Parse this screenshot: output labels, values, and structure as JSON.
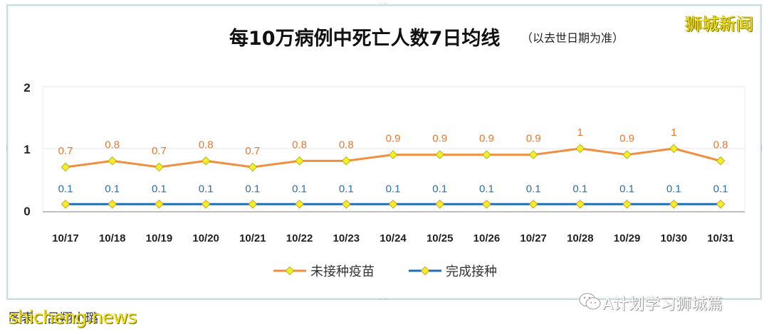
{
  "header": {
    "title": "每10万病例中死亡人数7日均线",
    "subtitle": "（以去世日期为准）",
    "brand": "狮城新闻"
  },
  "legend": {
    "items": [
      {
        "label": "未接种疫苗",
        "color": "#f28e3f"
      },
      {
        "label": "完成接种",
        "color": "#1f6fb5"
      }
    ]
  },
  "footer": {
    "caption": "图表：吕翔小璐",
    "watermark_en": "shicheng.news",
    "watermark_cn": "A计划学习狮城篇"
  },
  "colors": {
    "unvaccinated": "#f28e3f",
    "vaccinated": "#1f6fb5",
    "marker_fill": "#f4ee2a",
    "unvaccinated_label": "#e8782e",
    "vaccinated_label": "#2a6faf",
    "gridline": "#e4e4e4",
    "axis": "#bfbfbf"
  },
  "chart_data": {
    "type": "line",
    "title": "每10万病例中死亡人数7日均线（以去世日期为准）",
    "xlabel": "",
    "ylabel": "",
    "ylim": [
      0,
      2
    ],
    "yticks": [
      0,
      1,
      2
    ],
    "grid": true,
    "legend_position": "bottom",
    "categories": [
      "10/17",
      "10/18",
      "10/19",
      "10/20",
      "10/21",
      "10/22",
      "10/23",
      "10/24",
      "10/25",
      "10/26",
      "10/27",
      "10/28",
      "10/29",
      "10/30",
      "10/31"
    ],
    "series": [
      {
        "name": "未接种疫苗",
        "values": [
          0.7,
          0.8,
          0.7,
          0.8,
          0.7,
          0.8,
          0.8,
          0.9,
          0.9,
          0.9,
          0.9,
          1,
          0.9,
          1,
          0.8
        ]
      },
      {
        "name": "完成接种",
        "values": [
          0.1,
          0.1,
          0.1,
          0.1,
          0.1,
          0.1,
          0.1,
          0.1,
          0.1,
          0.1,
          0.1,
          0.1,
          0.1,
          0.1,
          0.1
        ]
      }
    ]
  }
}
